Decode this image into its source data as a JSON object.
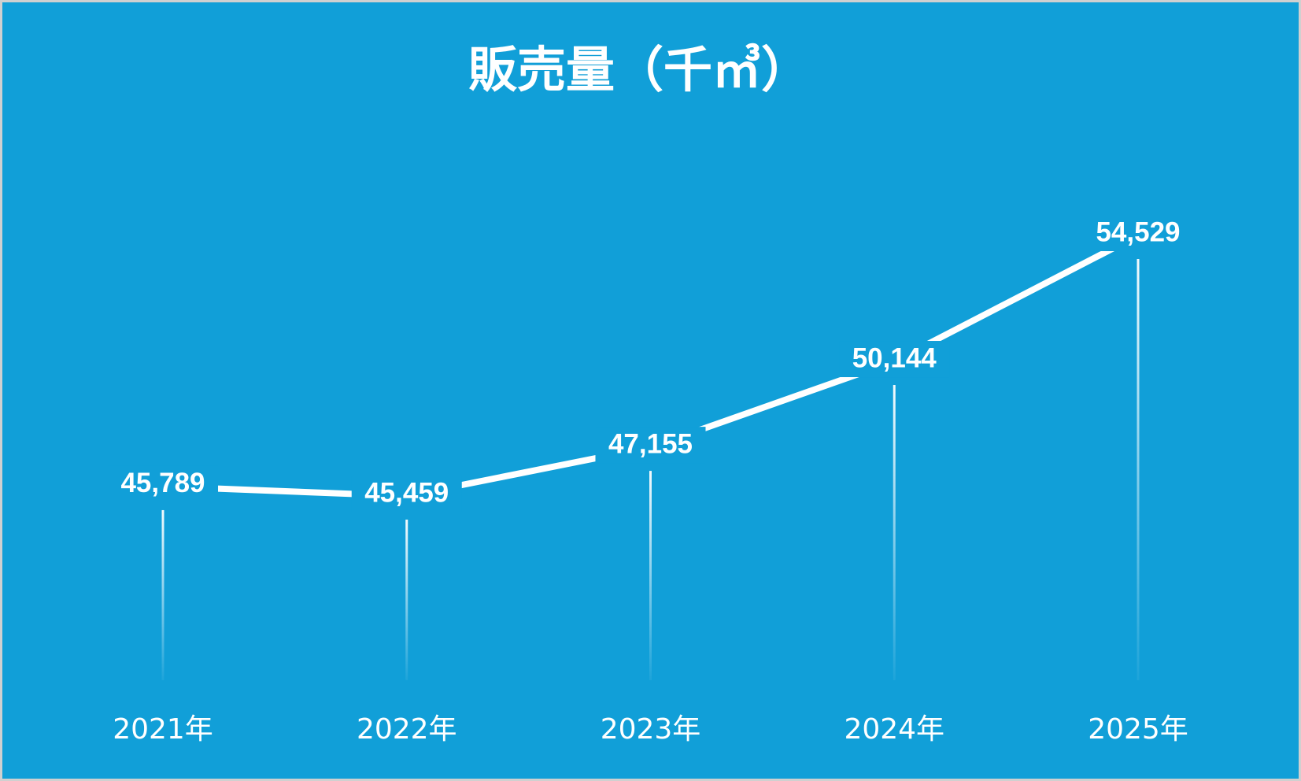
{
  "chart_data": {
    "type": "line",
    "title": "販売量（千㎥）",
    "categories": [
      "2021年",
      "2022年",
      "2023年",
      "2024年",
      "2025年"
    ],
    "values": [
      45789,
      45459,
      47155,
      50144,
      54529
    ],
    "value_labels": [
      "45,789",
      "45,459",
      "47,155",
      "50,144",
      "54,529"
    ],
    "color": "#ffffff",
    "background": "#119fd8"
  }
}
